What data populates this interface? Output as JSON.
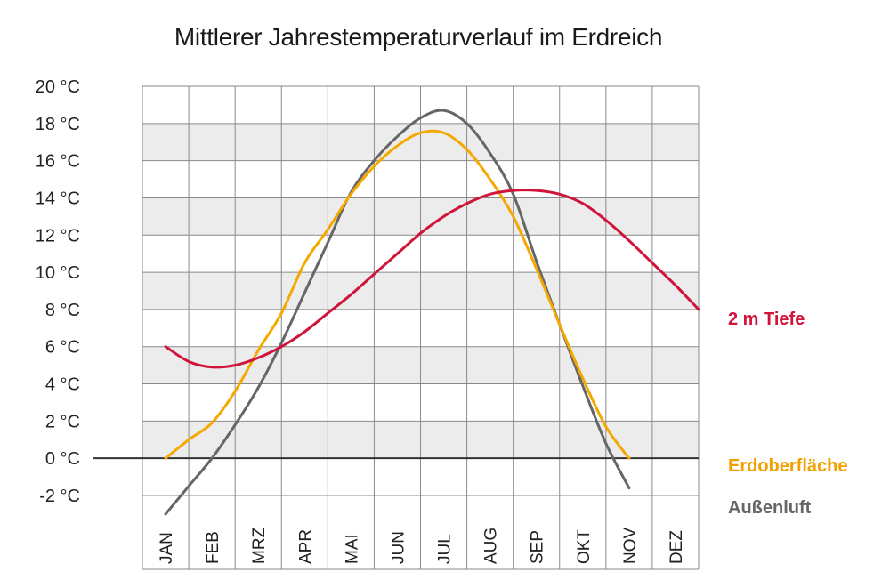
{
  "chart_data": {
    "type": "line",
    "title": "Mittlerer Jahrestemperaturverlauf im Erdreich",
    "xlabel": "",
    "ylabel": "",
    "categories": [
      "JAN",
      "FEB",
      "MRZ",
      "APR",
      "MAI",
      "JUN",
      "JUL",
      "AUG",
      "SEP",
      "OKT",
      "NOV",
      "DEZ"
    ],
    "ylim": [
      -2,
      20
    ],
    "yticks": [
      "20 °C",
      "18 °C",
      "16 °C",
      "14 °C",
      "12 °C",
      "10 °C",
      "8 °C",
      "6 °C",
      "4 °C",
      "2 °C",
      "0 °C",
      "-2 °C"
    ],
    "grid": true,
    "legend": "right, labels at line ends",
    "series": [
      {
        "name": "2 m Tiefe",
        "color": "#d0153c",
        "x": [
          0.0,
          0.5,
          1.0,
          1.5,
          2.0,
          2.5,
          3.0,
          3.5,
          4.0,
          4.5,
          5.0,
          5.5,
          6.0,
          6.5,
          7.0,
          7.5,
          8.0,
          8.5,
          9.0,
          9.5,
          10.0,
          10.5,
          11.0,
          11.5
        ],
        "values": [
          6.0,
          5.2,
          4.9,
          5.0,
          5.4,
          6.0,
          6.8,
          7.8,
          8.8,
          9.9,
          11.0,
          12.1,
          13.0,
          13.7,
          14.2,
          14.4,
          14.4,
          14.2,
          13.7,
          12.8,
          11.7,
          10.5,
          9.3,
          8.0
        ]
      },
      {
        "name": "Erdoberfläche",
        "color": "#f5a800",
        "x": [
          0.0,
          0.5,
          1.0,
          1.5,
          2.0,
          2.5,
          3.0,
          3.5,
          4.0,
          4.5,
          5.0,
          5.5,
          6.0,
          6.5,
          7.0,
          7.5,
          8.0,
          8.5,
          9.0,
          9.5,
          10.0,
          10.5,
          11.0,
          11.5
        ],
        "values": [
          0.0,
          1.0,
          1.9,
          3.6,
          5.8,
          7.8,
          10.5,
          12.3,
          14.2,
          15.7,
          16.8,
          17.5,
          17.5,
          16.6,
          15.0,
          13.0,
          10.2,
          7.2,
          4.3,
          1.7,
          0.0,
          null,
          null,
          null
        ]
      },
      {
        "name": "Außenluft",
        "color": "#666666",
        "x": [
          0.0,
          0.5,
          1.0,
          1.5,
          2.0,
          2.5,
          3.0,
          3.5,
          4.0,
          4.5,
          5.0,
          5.5,
          6.0,
          6.5,
          7.0,
          7.5,
          8.0,
          8.5,
          9.0,
          9.5,
          10.0,
          10.5,
          11.0,
          11.5
        ],
        "values": [
          -3.0,
          -1.5,
          0.0,
          1.8,
          3.8,
          6.2,
          8.9,
          11.6,
          14.3,
          16.0,
          17.3,
          18.3,
          18.7,
          18.0,
          16.4,
          14.2,
          10.6,
          7.2,
          3.9,
          0.8,
          -1.6,
          null,
          null,
          null
        ]
      }
    ]
  },
  "legend_labels": {
    "tiefe": "2 m Tiefe",
    "oberflaeche": "Erdoberfläche",
    "luft": "Außenluft"
  }
}
